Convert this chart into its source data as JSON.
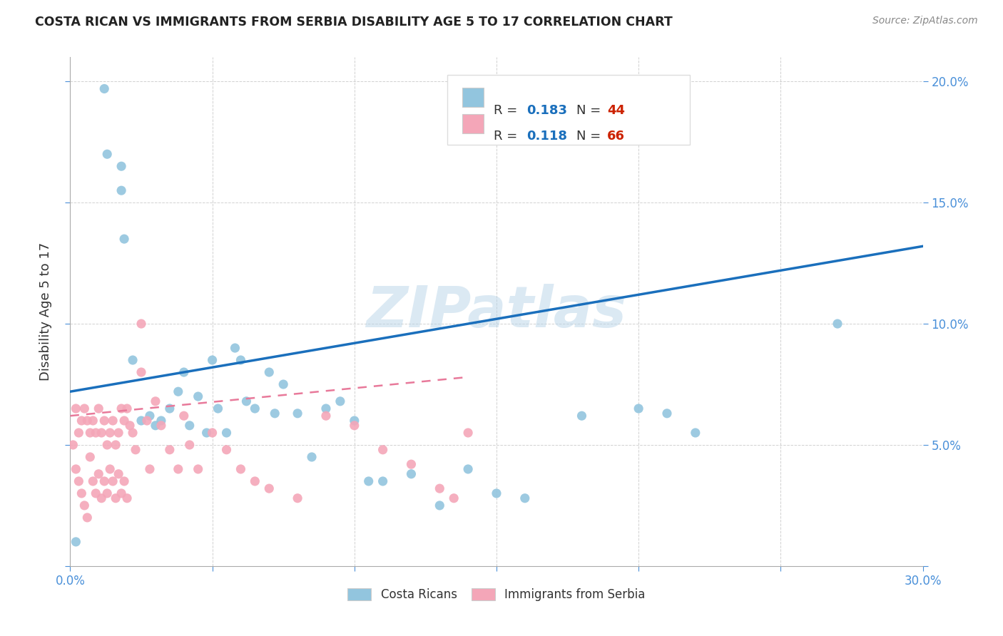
{
  "title": "COSTA RICAN VS IMMIGRANTS FROM SERBIA DISABILITY AGE 5 TO 17 CORRELATION CHART",
  "source": "Source: ZipAtlas.com",
  "ylabel": "Disability Age 5 to 17",
  "xlim": [
    0.0,
    0.3
  ],
  "ylim": [
    0.0,
    0.21
  ],
  "xticks": [
    0.0,
    0.05,
    0.1,
    0.15,
    0.2,
    0.25,
    0.3
  ],
  "yticks": [
    0.0,
    0.05,
    0.1,
    0.15,
    0.2
  ],
  "watermark": "ZIPatlas",
  "blue_color": "#92c5de",
  "pink_color": "#f4a6b8",
  "line_blue": "#1a6fbc",
  "line_pink": "#e8799a",
  "background_color": "#ffffff",
  "grid_color": "#cccccc",
  "costa_ricans_x": [
    0.002,
    0.012,
    0.013,
    0.018,
    0.018,
    0.019,
    0.022,
    0.025,
    0.028,
    0.03,
    0.032,
    0.035,
    0.038,
    0.04,
    0.042,
    0.045,
    0.048,
    0.05,
    0.052,
    0.055,
    0.058,
    0.06,
    0.062,
    0.065,
    0.07,
    0.072,
    0.075,
    0.08,
    0.085,
    0.09,
    0.095,
    0.1,
    0.105,
    0.11,
    0.12,
    0.13,
    0.14,
    0.15,
    0.16,
    0.18,
    0.2,
    0.21,
    0.22,
    0.27
  ],
  "costa_ricans_y": [
    0.01,
    0.197,
    0.17,
    0.165,
    0.155,
    0.135,
    0.085,
    0.06,
    0.062,
    0.058,
    0.06,
    0.065,
    0.072,
    0.08,
    0.058,
    0.07,
    0.055,
    0.085,
    0.065,
    0.055,
    0.09,
    0.085,
    0.068,
    0.065,
    0.08,
    0.063,
    0.075,
    0.063,
    0.045,
    0.065,
    0.068,
    0.06,
    0.035,
    0.035,
    0.038,
    0.025,
    0.04,
    0.03,
    0.028,
    0.062,
    0.065,
    0.063,
    0.055,
    0.1
  ],
  "serbia_x": [
    0.001,
    0.002,
    0.002,
    0.003,
    0.003,
    0.004,
    0.004,
    0.005,
    0.005,
    0.006,
    0.006,
    0.007,
    0.007,
    0.008,
    0.008,
    0.009,
    0.009,
    0.01,
    0.01,
    0.011,
    0.011,
    0.012,
    0.012,
    0.013,
    0.013,
    0.014,
    0.014,
    0.015,
    0.015,
    0.016,
    0.016,
    0.017,
    0.017,
    0.018,
    0.018,
    0.019,
    0.019,
    0.02,
    0.02,
    0.021,
    0.022,
    0.023,
    0.025,
    0.025,
    0.027,
    0.028,
    0.03,
    0.032,
    0.035,
    0.038,
    0.04,
    0.042,
    0.045,
    0.05,
    0.055,
    0.06,
    0.065,
    0.07,
    0.08,
    0.09,
    0.1,
    0.11,
    0.12,
    0.13,
    0.135,
    0.14
  ],
  "serbia_y": [
    0.05,
    0.065,
    0.04,
    0.055,
    0.035,
    0.06,
    0.03,
    0.065,
    0.025,
    0.06,
    0.02,
    0.055,
    0.045,
    0.06,
    0.035,
    0.055,
    0.03,
    0.065,
    0.038,
    0.055,
    0.028,
    0.06,
    0.035,
    0.05,
    0.03,
    0.055,
    0.04,
    0.06,
    0.035,
    0.05,
    0.028,
    0.055,
    0.038,
    0.065,
    0.03,
    0.06,
    0.035,
    0.065,
    0.028,
    0.058,
    0.055,
    0.048,
    0.1,
    0.08,
    0.06,
    0.04,
    0.068,
    0.058,
    0.048,
    0.04,
    0.062,
    0.05,
    0.04,
    0.055,
    0.048,
    0.04,
    0.035,
    0.032,
    0.028,
    0.062,
    0.058,
    0.048,
    0.042,
    0.032,
    0.028,
    0.055
  ],
  "cr_trend_x0": 0.0,
  "cr_trend_y0": 0.072,
  "cr_trend_x1": 0.3,
  "cr_trend_y1": 0.132,
  "sr_trend_x0": 0.0,
  "sr_trend_y0": 0.062,
  "sr_trend_x1": 0.14,
  "sr_trend_y1": 0.078
}
